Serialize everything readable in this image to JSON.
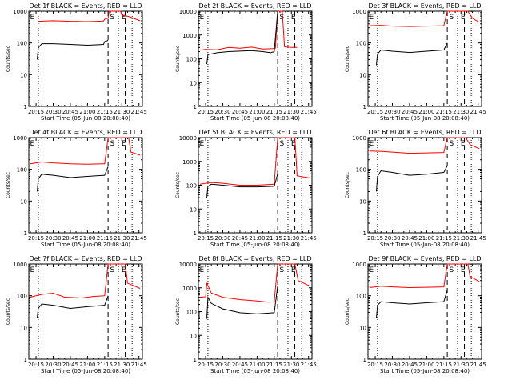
{
  "colors": {
    "events": "#000000",
    "lld": "#ff0000",
    "axis": "#000000",
    "background": "#ffffff"
  },
  "chart_data": [
    {
      "type": "line",
      "title": "Det 1f BLACK = Events, RED = LLD",
      "xlabel": "Start Time (05-Jun-08 20:08:40)",
      "ylabel": "Counts/sec",
      "yscale": "log",
      "ylim": [
        1,
        1000
      ],
      "yticks": [
        "1",
        "10",
        "100",
        "1000"
      ],
      "xticks": [
        "20:15",
        "20:30",
        "20:45",
        "21:00",
        "21:15",
        "21:30",
        "21:45"
      ],
      "markers": [
        {
          "label": "E",
          "time": "20:09"
        },
        {
          "label": "S",
          "time": "21:19"
        },
        {
          "label": "E",
          "time": "21:29"
        }
      ],
      "series": [
        {
          "points": [
            [
              "20:17",
              480
            ],
            [
              "20:30",
              500
            ],
            [
              "20:45",
              480
            ],
            [
              "21:00",
              470
            ],
            [
              "21:14",
              490
            ],
            [
              "21:15",
              560
            ],
            [
              "21:18",
              600
            ],
            [
              "21:19",
              1100
            ],
            [
              "21:29",
              1100
            ],
            [
              "21:30",
              750
            ],
            [
              "21:36",
              680
            ],
            [
              "21:46",
              500
            ]
          ]
        },
        {
          "points": [
            [
              "20:16",
              30
            ],
            [
              "20:17",
              70
            ],
            [
              "20:20",
              95
            ],
            [
              "20:30",
              95
            ],
            [
              "20:45",
              90
            ],
            [
              "21:00",
              85
            ],
            [
              "21:14",
              90
            ],
            [
              "21:15",
              110
            ],
            [
              "21:18",
              120
            ]
          ]
        }
      ]
    },
    {
      "type": "line",
      "title": "Det 2f BLACK = Events, RED = LLD",
      "xlabel": "Start Time (05-Jun-08 20:08:40)",
      "ylabel": "Counts/sec",
      "yscale": "log",
      "ylim": [
        1,
        10000
      ],
      "yticks": [
        "1",
        "10",
        "100",
        "1000",
        "10000"
      ],
      "xticks": [
        "20:15",
        "20:30",
        "20:45",
        "21:00",
        "21:15",
        "21:30",
        "21:45"
      ],
      "markers": [
        {
          "label": "E",
          "time": "20:09"
        },
        {
          "label": "S",
          "time": "21:19"
        },
        {
          "label": "E",
          "time": "21:29"
        }
      ],
      "series": [
        {
          "points": [
            [
              "20:10",
              230
            ],
            [
              "20:15",
              250
            ],
            [
              "20:25",
              240
            ],
            [
              "20:35",
              300
            ],
            [
              "20:45",
              280
            ],
            [
              "20:55",
              310
            ],
            [
              "21:05",
              260
            ],
            [
              "21:14",
              270
            ],
            [
              "21:16",
              280
            ],
            [
              "21:18",
              12000
            ],
            [
              "21:22",
              12000
            ],
            [
              "21:24",
              320
            ],
            [
              "21:30",
              300
            ],
            [
              "21:35",
              300
            ]
          ]
        },
        {
          "points": [
            [
              "20:16",
              60
            ],
            [
              "20:17",
              150
            ],
            [
              "20:25",
              180
            ],
            [
              "20:35",
              200
            ],
            [
              "20:45",
              210
            ],
            [
              "20:55",
              220
            ],
            [
              "21:05",
              200
            ],
            [
              "21:12",
              180
            ],
            [
              "21:15",
              200
            ],
            [
              "21:18",
              10000
            ]
          ]
        }
      ]
    },
    {
      "type": "line",
      "title": "Det 3f BLACK = Events, RED = LLD",
      "xlabel": "Start Time (05-Jun-08 20:08:40)",
      "ylabel": "Counts/sec",
      "yscale": "log",
      "ylim": [
        1,
        1000
      ],
      "yticks": [
        "1",
        "10",
        "100",
        "1000"
      ],
      "xticks": [
        "20:15",
        "20:30",
        "20:45",
        "21:00",
        "21:15",
        "21:30",
        "21:45"
      ],
      "markers": [
        {
          "label": "E",
          "time": "20:09"
        },
        {
          "label": "S",
          "time": "21:19"
        },
        {
          "label": "E",
          "time": "21:29"
        }
      ],
      "series": [
        {
          "points": [
            [
              "20:10",
              350
            ],
            [
              "20:20",
              360
            ],
            [
              "20:30",
              340
            ],
            [
              "20:45",
              330
            ],
            [
              "21:00",
              340
            ],
            [
              "21:15",
              350
            ],
            [
              "21:18",
              1100
            ],
            [
              "21:36",
              1100
            ],
            [
              "21:40",
              600
            ],
            [
              "21:46",
              450
            ]
          ]
        },
        {
          "points": [
            [
              "20:16",
              20
            ],
            [
              "20:17",
              45
            ],
            [
              "20:20",
              60
            ],
            [
              "20:30",
              55
            ],
            [
              "20:45",
              50
            ],
            [
              "21:00",
              55
            ],
            [
              "21:15",
              60
            ],
            [
              "21:18",
              100
            ]
          ]
        }
      ]
    },
    {
      "type": "line",
      "title": "Det 4f BLACK = Events, RED = LLD",
      "xlabel": "Start Time (05-Jun-08 20:08:40)",
      "ylabel": "Counts/sec",
      "yscale": "log",
      "ylim": [
        1,
        1000
      ],
      "yticks": [
        "1",
        "10",
        "100",
        "1000"
      ],
      "xticks": [
        "20:15",
        "20:30",
        "20:45",
        "21:00",
        "21:15",
        "21:30",
        "21:45"
      ],
      "markers": [
        {
          "label": "E",
          "time": "20:09"
        },
        {
          "label": "S",
          "time": "21:19"
        },
        {
          "label": "E",
          "time": "21:29"
        }
      ],
      "series": [
        {
          "points": [
            [
              "20:10",
              150
            ],
            [
              "20:20",
              170
            ],
            [
              "20:30",
              160
            ],
            [
              "20:45",
              150
            ],
            [
              "21:00",
              145
            ],
            [
              "21:15",
              150
            ],
            [
              "21:18",
              1100
            ],
            [
              "21:36",
              1100
            ],
            [
              "21:38",
              350
            ],
            [
              "21:46",
              280
            ]
          ]
        },
        {
          "points": [
            [
              "20:16",
              20
            ],
            [
              "20:17",
              50
            ],
            [
              "20:20",
              70
            ],
            [
              "20:30",
              65
            ],
            [
              "20:45",
              55
            ],
            [
              "21:00",
              60
            ],
            [
              "21:15",
              65
            ],
            [
              "21:18",
              120
            ]
          ]
        }
      ]
    },
    {
      "type": "line",
      "title": "Det 5f BLACK = Events, RED = LLD",
      "xlabel": "Start Time (05-Jun-08 20:08:40)",
      "ylabel": "Counts/sec",
      "yscale": "log",
      "ylim": [
        1,
        10000
      ],
      "yticks": [
        "1",
        "10",
        "100",
        "1000",
        "10000"
      ],
      "xticks": [
        "20:15",
        "20:30",
        "20:45",
        "21:00",
        "21:15",
        "21:30",
        "21:45"
      ],
      "markers": [
        {
          "label": "E",
          "time": "20:09"
        },
        {
          "label": "S",
          "time": "21:19"
        },
        {
          "label": "E",
          "time": "21:29"
        }
      ],
      "series": [
        {
          "points": [
            [
              "20:10",
              110
            ],
            [
              "20:20",
              130
            ],
            [
              "20:30",
              120
            ],
            [
              "20:45",
              100
            ],
            [
              "21:00",
              100
            ],
            [
              "21:15",
              110
            ],
            [
              "21:18",
              12000
            ],
            [
              "21:33",
              12000
            ],
            [
              "21:35",
              250
            ],
            [
              "21:46",
              200
            ]
          ]
        },
        {
          "points": [
            [
              "20:16",
              30
            ],
            [
              "20:17",
              90
            ],
            [
              "20:20",
              110
            ],
            [
              "20:30",
              100
            ],
            [
              "20:45",
              85
            ],
            [
              "21:00",
              85
            ],
            [
              "21:15",
              90
            ],
            [
              "21:18",
              300
            ]
          ]
        }
      ]
    },
    {
      "type": "line",
      "title": "Det 6f BLACK = Events, RED = LLD",
      "xlabel": "Start Time (05-Jun-08 20:08:40)",
      "ylabel": "Counts/sec",
      "yscale": "log",
      "ylim": [
        1,
        1000
      ],
      "yticks": [
        "1",
        "10",
        "100",
        "1000"
      ],
      "xticks": [
        "20:15",
        "20:30",
        "20:45",
        "21:00",
        "21:15",
        "21:30",
        "21:45"
      ],
      "markers": [
        {
          "label": "E",
          "time": "20:09"
        },
        {
          "label": "S",
          "time": "21:19"
        },
        {
          "label": "E",
          "time": "21:29"
        }
      ],
      "series": [
        {
          "points": [
            [
              "20:10",
              380
            ],
            [
              "20:20",
              370
            ],
            [
              "20:30",
              350
            ],
            [
              "20:45",
              320
            ],
            [
              "21:00",
              330
            ],
            [
              "21:15",
              340
            ],
            [
              "21:18",
              1100
            ],
            [
              "21:34",
              1100
            ],
            [
              "21:38",
              600
            ],
            [
              "21:46",
              450
            ]
          ]
        },
        {
          "points": [
            [
              "20:16",
              20
            ],
            [
              "20:17",
              60
            ],
            [
              "20:20",
              90
            ],
            [
              "20:30",
              80
            ],
            [
              "20:45",
              65
            ],
            [
              "21:00",
              70
            ],
            [
              "21:15",
              80
            ],
            [
              "21:18",
              130
            ]
          ]
        }
      ]
    },
    {
      "type": "line",
      "title": "Det 7f BLACK = Events, RED = LLD",
      "xlabel": "Start Time (05-Jun-08 20:08:40)",
      "ylabel": "Counts/sec",
      "yscale": "log",
      "ylim": [
        1,
        1000
      ],
      "yticks": [
        "1",
        "10",
        "100",
        "1000"
      ],
      "xticks": [
        "20:15",
        "20:30",
        "20:45",
        "21:00",
        "21:15",
        "21:30",
        "21:45"
      ],
      "markers": [
        {
          "label": "E",
          "time": "20:09"
        },
        {
          "label": "S",
          "time": "21:19"
        },
        {
          "label": "E",
          "time": "21:29"
        }
      ],
      "series": [
        {
          "points": [
            [
              "20:10",
              90
            ],
            [
              "20:20",
              110
            ],
            [
              "20:30",
              120
            ],
            [
              "20:40",
              90
            ],
            [
              "20:55",
              85
            ],
            [
              "21:05",
              95
            ],
            [
              "21:15",
              100
            ],
            [
              "21:18",
              1100
            ],
            [
              "21:33",
              1100
            ],
            [
              "21:35",
              250
            ],
            [
              "21:46",
              170
            ]
          ]
        },
        {
          "points": [
            [
              "20:16",
              20
            ],
            [
              "20:17",
              40
            ],
            [
              "20:20",
              55
            ],
            [
              "20:30",
              50
            ],
            [
              "20:45",
              40
            ],
            [
              "21:00",
              45
            ],
            [
              "21:15",
              50
            ],
            [
              "21:18",
              100
            ]
          ]
        }
      ]
    },
    {
      "type": "line",
      "title": "Det 8f BLACK = Events, RED = LLD",
      "xlabel": "Start Time (05-Jun-08 20:08:40)",
      "ylabel": "Counts/sec",
      "yscale": "log",
      "ylim": [
        1,
        10000
      ],
      "yticks": [
        "1",
        "10",
        "100",
        "1000",
        "10000"
      ],
      "xticks": [
        "20:15",
        "20:30",
        "20:45",
        "21:00",
        "21:15",
        "21:30",
        "21:45"
      ],
      "markers": [
        {
          "label": "E",
          "time": "20:09"
        },
        {
          "label": "S",
          "time": "21:19"
        },
        {
          "label": "E",
          "time": "21:29"
        }
      ],
      "series": [
        {
          "points": [
            [
              "20:10",
              400
            ],
            [
              "20:15",
              420
            ],
            [
              "20:16",
              1600
            ],
            [
              "20:20",
              600
            ],
            [
              "20:30",
              400
            ],
            [
              "20:45",
              320
            ],
            [
              "21:00",
              280
            ],
            [
              "21:10",
              250
            ],
            [
              "21:15",
              260
            ],
            [
              "21:18",
              12000
            ],
            [
              "21:33",
              12000
            ],
            [
              "21:36",
              2000
            ],
            [
              "21:46",
              1200
            ]
          ]
        },
        {
          "points": [
            [
              "20:16",
              50
            ],
            [
              "20:17",
              400
            ],
            [
              "20:20",
              220
            ],
            [
              "20:30",
              130
            ],
            [
              "20:45",
              90
            ],
            [
              "21:00",
              80
            ],
            [
              "21:15",
              90
            ],
            [
              "21:18",
              1200
            ]
          ]
        }
      ]
    },
    {
      "type": "line",
      "title": "Det 9f BLACK = Events, RED = LLD",
      "xlabel": "Start Time (05-Jun-08 20:08:40)",
      "ylabel": "Counts/sec",
      "yscale": "log",
      "ylim": [
        1,
        1000
      ],
      "yticks": [
        "1",
        "10",
        "100",
        "1000"
      ],
      "xticks": [
        "20:15",
        "20:30",
        "20:45",
        "21:00",
        "21:15",
        "21:30",
        "21:45"
      ],
      "markers": [
        {
          "label": "E",
          "time": "20:09"
        },
        {
          "label": "S",
          "time": "21:19"
        },
        {
          "label": "E",
          "time": "21:29"
        }
      ],
      "series": [
        {
          "points": [
            [
              "20:10",
              180
            ],
            [
              "20:20",
              200
            ],
            [
              "20:30",
              190
            ],
            [
              "20:45",
              180
            ],
            [
              "21:00",
              185
            ],
            [
              "21:15",
              190
            ],
            [
              "21:18",
              1100
            ],
            [
              "21:36",
              1100
            ],
            [
              "21:38",
              400
            ],
            [
              "21:46",
              280
            ]
          ]
        },
        {
          "points": [
            [
              "20:16",
              20
            ],
            [
              "20:17",
              50
            ],
            [
              "20:20",
              65
            ],
            [
              "20:30",
              60
            ],
            [
              "20:45",
              55
            ],
            [
              "21:00",
              60
            ],
            [
              "21:15",
              65
            ],
            [
              "21:18",
              150
            ]
          ]
        }
      ]
    }
  ]
}
